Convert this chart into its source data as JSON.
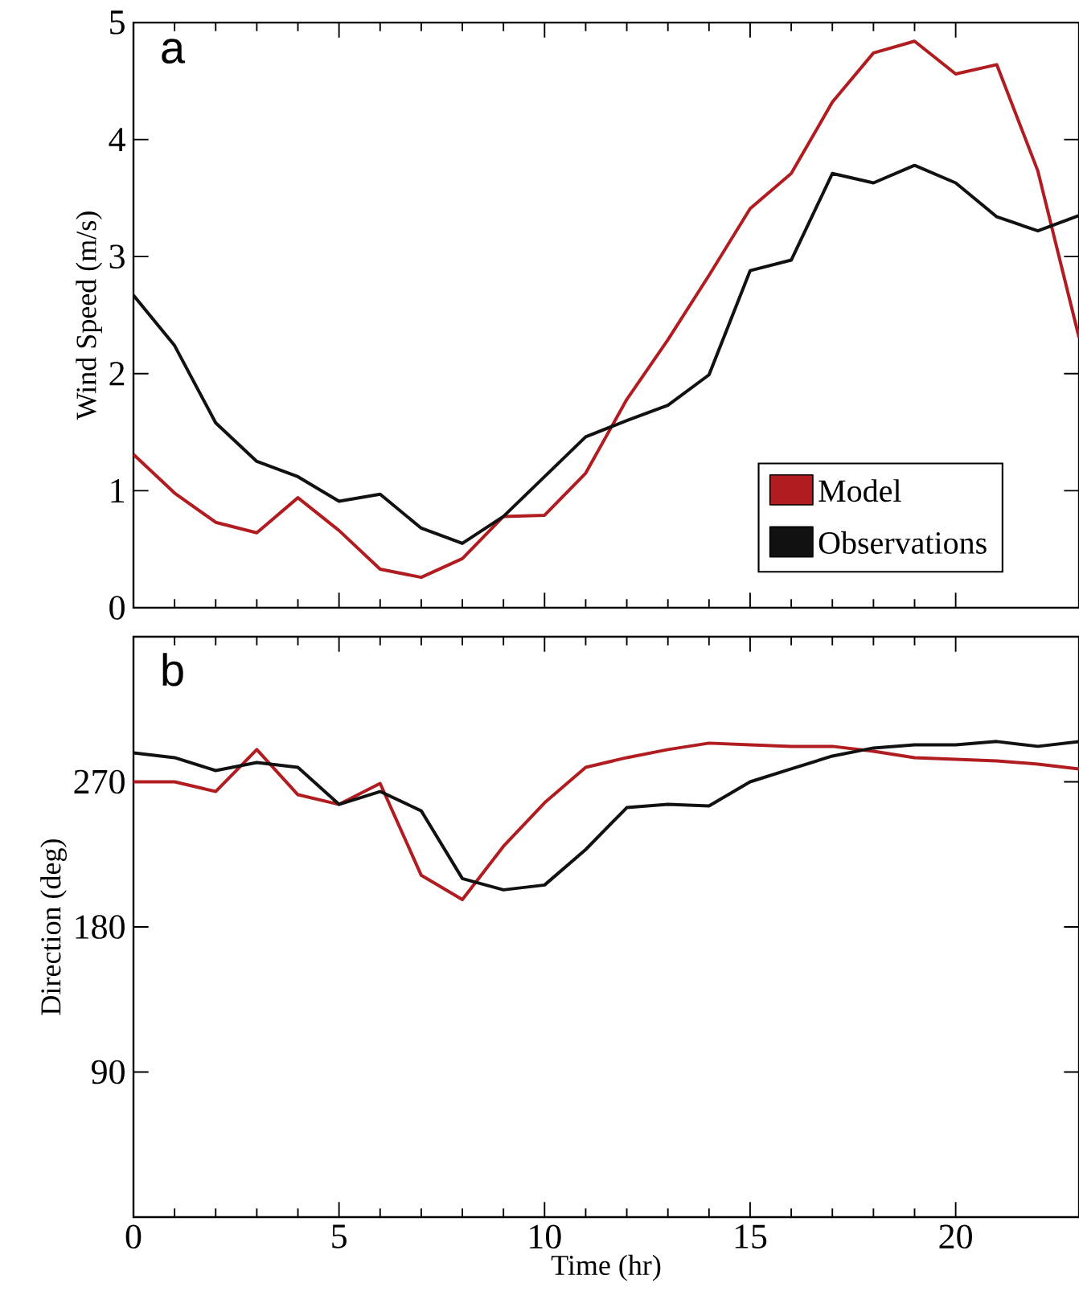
{
  "chart_data": [
    {
      "type": "line",
      "annotations": [
        "a"
      ],
      "ylabel": "Wind Speed (m/s)",
      "xlim": [
        0,
        23
      ],
      "xticks": [
        0,
        5,
        10,
        15,
        20
      ],
      "ylim": [
        0,
        5
      ],
      "yticks": [
        0,
        1,
        2,
        3,
        4,
        5
      ],
      "tick_labels": "y",
      "legend": "bottom right",
      "x": [
        0,
        1,
        2,
        3,
        4,
        5,
        6,
        7,
        8,
        9,
        10,
        11,
        12,
        13,
        14,
        15,
        16,
        17,
        18,
        19,
        20,
        21,
        22,
        23
      ],
      "series": [
        {
          "name": "Model",
          "color": "#b01c20",
          "values": [
            1.31,
            0.98,
            0.73,
            0.64,
            0.94,
            0.66,
            0.33,
            0.26,
            0.42,
            0.78,
            0.79,
            1.15,
            1.78,
            2.29,
            2.84,
            3.41,
            3.71,
            4.32,
            4.74,
            4.84,
            4.56,
            4.64,
            3.73,
            2.31
          ]
        },
        {
          "name": "Observations",
          "color": "#111111",
          "values": [
            2.67,
            2.24,
            1.58,
            1.25,
            1.12,
            0.91,
            0.97,
            0.68,
            0.55,
            0.78,
            1.12,
            1.46,
            1.6,
            1.73,
            1.99,
            2.88,
            2.97,
            3.71,
            3.63,
            3.78,
            3.63,
            3.34,
            3.22,
            3.35
          ]
        }
      ]
    },
    {
      "type": "line",
      "annotations": [
        "b"
      ],
      "xlabel": "Time (hr)",
      "ylabel": "Direction (deg)",
      "xlim": [
        0,
        23
      ],
      "xticks": [
        0,
        5,
        10,
        15,
        20
      ],
      "ylim": [
        0,
        360
      ],
      "yticks": [
        90,
        180,
        270
      ],
      "x": [
        0,
        1,
        2,
        3,
        4,
        5,
        6,
        7,
        8,
        9,
        10,
        11,
        12,
        13,
        14,
        15,
        16,
        17,
        18,
        19,
        20,
        21,
        22,
        23
      ],
      "series": [
        {
          "color": "#b01c20",
          "values": [
            270,
            270,
            264,
            290,
            262,
            256,
            269,
            212,
            197,
            230,
            257,
            279,
            285,
            290,
            294,
            293,
            292,
            292,
            289,
            285,
            284,
            283,
            281,
            278
          ]
        },
        {
          "color": "#111111",
          "values": [
            288,
            285,
            277,
            282,
            279,
            256,
            264,
            252,
            210,
            203,
            206,
            228,
            254,
            256,
            255,
            270,
            278,
            286,
            291,
            293,
            293,
            295,
            292,
            295
          ]
        }
      ]
    }
  ]
}
